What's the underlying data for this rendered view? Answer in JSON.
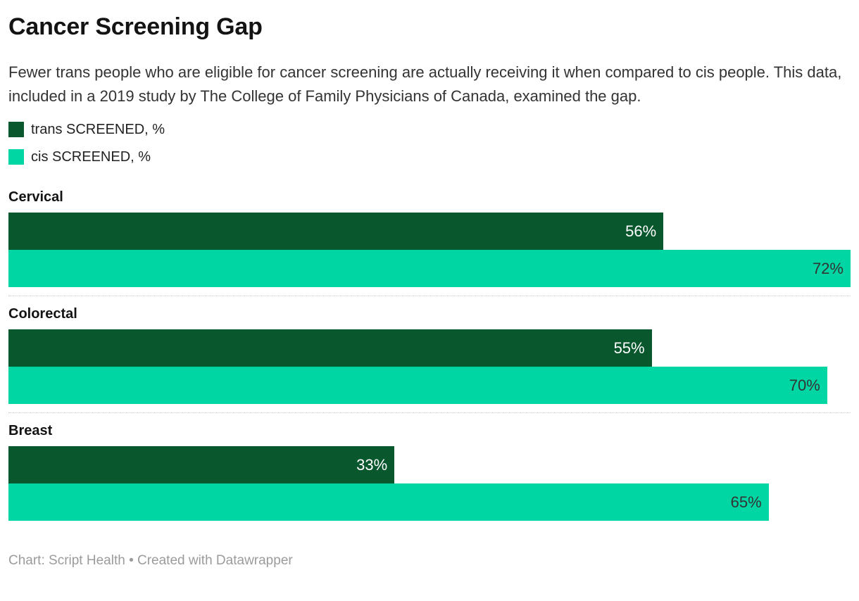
{
  "header": {
    "title": "Cancer Screening Gap",
    "description": "Fewer trans people who are eligible for cancer screening are actually receiving it when compared to cis people. This data, included in a 2019 study by The College of Family Physicians of Canada, examined the gap."
  },
  "chart_data": {
    "type": "bar",
    "orientation": "horizontal",
    "title": "Cancer Screening Gap",
    "categories": [
      "Cervical",
      "Colorectal",
      "Breast"
    ],
    "series": [
      {
        "key": "trans",
        "name": "trans SCREENED, %",
        "color": "#08572d",
        "value_label_color": "#ffffff",
        "values": [
          56,
          55,
          33
        ]
      },
      {
        "key": "cis",
        "name": "cis SCREENED, %",
        "color": "#00d6a3",
        "value_label_color": "#333333",
        "values": [
          72,
          70,
          65
        ]
      }
    ],
    "value_suffix": "%",
    "xmax": 72,
    "grid": false,
    "legend_position": "top-left",
    "group_divider_style": "dotted"
  },
  "footer": {
    "credit": "Chart: Script Health • Created with Datawrapper"
  }
}
